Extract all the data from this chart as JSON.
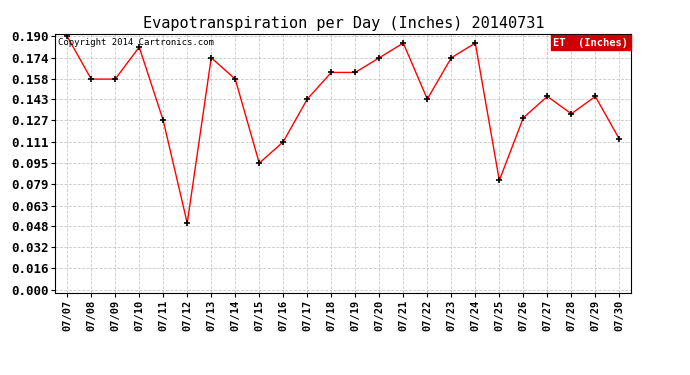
{
  "title": "Evapotranspiration per Day (Inches) 20140731",
  "copyright_text": "Copyright 2014 Cartronics.com",
  "legend_label": "ET  (Inches)",
  "dates": [
    "07/07",
    "07/08",
    "07/09",
    "07/10",
    "07/11",
    "07/12",
    "07/13",
    "07/14",
    "07/15",
    "07/16",
    "07/17",
    "07/18",
    "07/19",
    "07/20",
    "07/21",
    "07/22",
    "07/23",
    "07/24",
    "07/25",
    "07/26",
    "07/27",
    "07/28",
    "07/29",
    "07/30"
  ],
  "values": [
    0.19,
    0.158,
    0.158,
    0.182,
    0.127,
    0.05,
    0.174,
    0.158,
    0.095,
    0.111,
    0.143,
    0.163,
    0.163,
    0.174,
    0.185,
    0.143,
    0.174,
    0.185,
    0.082,
    0.129,
    0.145,
    0.132,
    0.145,
    0.113
  ],
  "line_color": "#ff0000",
  "marker_color": "#000000",
  "marker_style": "+",
  "background_color": "#ffffff",
  "plot_bg_color": "#ffffff",
  "grid_color": "#bbbbbb",
  "title_fontsize": 11,
  "tick_fontsize": 7.5,
  "ytick_fontsize": 9,
  "ymin": 0.0,
  "ymax": 0.19,
  "yticks": [
    0.0,
    0.016,
    0.032,
    0.048,
    0.063,
    0.079,
    0.095,
    0.111,
    0.127,
    0.143,
    0.158,
    0.174,
    0.19
  ],
  "legend_bg": "#cc0000",
  "legend_text_color": "#ffffff"
}
